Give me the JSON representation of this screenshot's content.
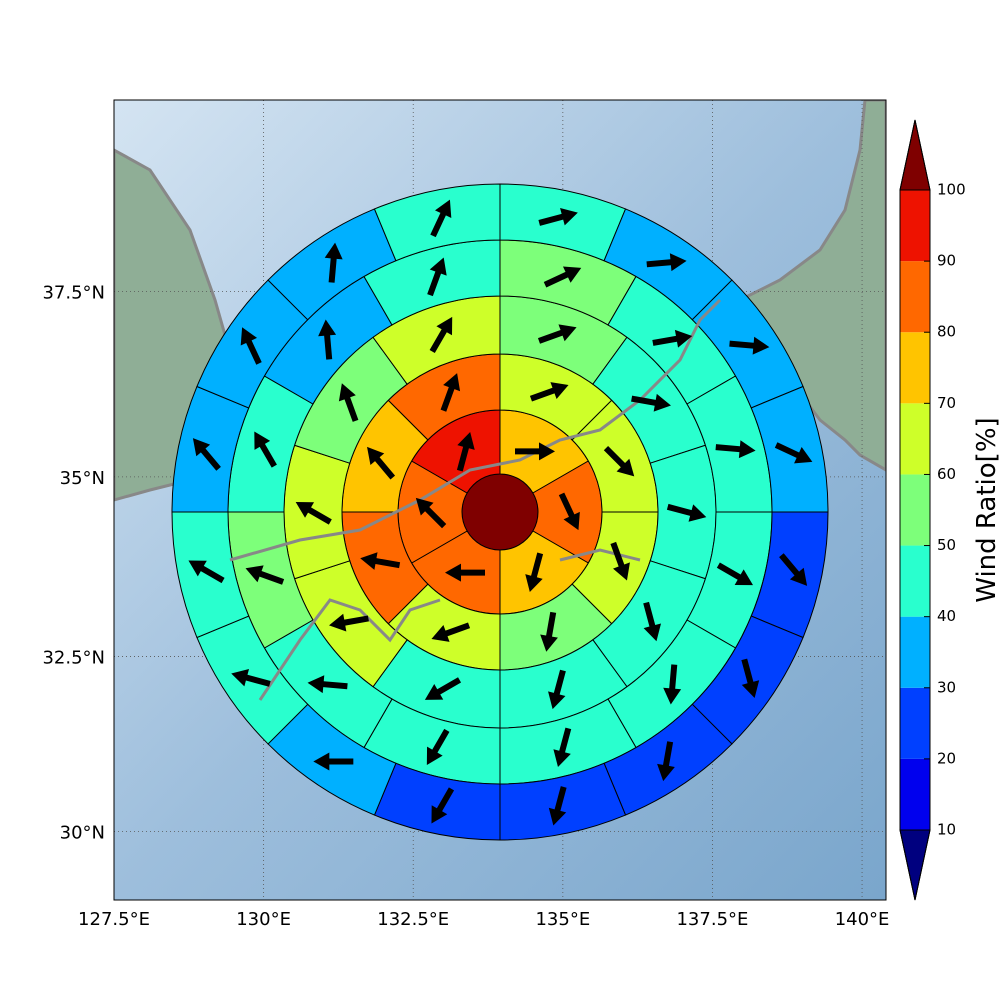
{
  "chart_data": {
    "type": "polar_sectors",
    "xlim": [
      127.5,
      140.4
    ],
    "ylim": [
      29,
      40
    ],
    "xticks": [
      {
        "value": 127.5,
        "label": "127.5°E"
      },
      {
        "value": 130,
        "label": "130°E"
      },
      {
        "value": 132.5,
        "label": "132.5°E"
      },
      {
        "value": 135,
        "label": "135°E"
      },
      {
        "value": 137.5,
        "label": "137.5°E"
      },
      {
        "value": 140,
        "label": "140°E"
      }
    ],
    "yticks": [
      {
        "value": 30,
        "label": "30°N"
      },
      {
        "value": 32.5,
        "label": "32.5°N"
      },
      {
        "value": 35,
        "label": "35°N"
      },
      {
        "value": 37.5,
        "label": "37.5°N"
      }
    ],
    "grid": true,
    "center_value": 100,
    "rings": [
      {
        "values": [
          75,
          85,
          75,
          85,
          85,
          95
        ],
        "directions": [
          90,
          155,
          195,
          270,
          315,
          15
        ]
      },
      {
        "values": [
          65,
          65,
          65,
          55,
          65,
          85,
          75,
          85
        ],
        "directions": [
          70,
          135,
          160,
          190,
          250,
          280,
          320,
          20
        ]
      },
      {
        "values": [
          55,
          45,
          45,
          45,
          45,
          45,
          65,
          65,
          55,
          65
        ],
        "directions": [
          70,
          100,
          105,
          165,
          195,
          240,
          260,
          300,
          340,
          30
        ]
      },
      {
        "values": [
          55,
          45,
          45,
          45,
          45,
          45,
          45,
          45,
          55,
          45,
          35,
          45
        ],
        "directions": [
          65,
          80,
          95,
          120,
          185,
          195,
          210,
          275,
          290,
          330,
          355,
          20
        ]
      },
      {
        "values": [
          45,
          35,
          35,
          35,
          25,
          25,
          25,
          25,
          25,
          35,
          45,
          45,
          35,
          35,
          35,
          45
        ],
        "directions": [
          75,
          85,
          95,
          115,
          140,
          165,
          190,
          195,
          210,
          270,
          285,
          300,
          320,
          335,
          5,
          25
        ]
      }
    ],
    "colorbar": {
      "label": "Wind Ratio[%]",
      "ticks": [
        10,
        20,
        30,
        40,
        50,
        60,
        70,
        80,
        90,
        100
      ],
      "colors": [
        "#0000ee",
        "#0040ff",
        "#00b0ff",
        "#29ffce",
        "#7dff7a",
        "#ceff29",
        "#ffc400",
        "#ff6800",
        "#ee1200"
      ],
      "under_color": "#00007f",
      "over_color": "#7f0000"
    }
  }
}
